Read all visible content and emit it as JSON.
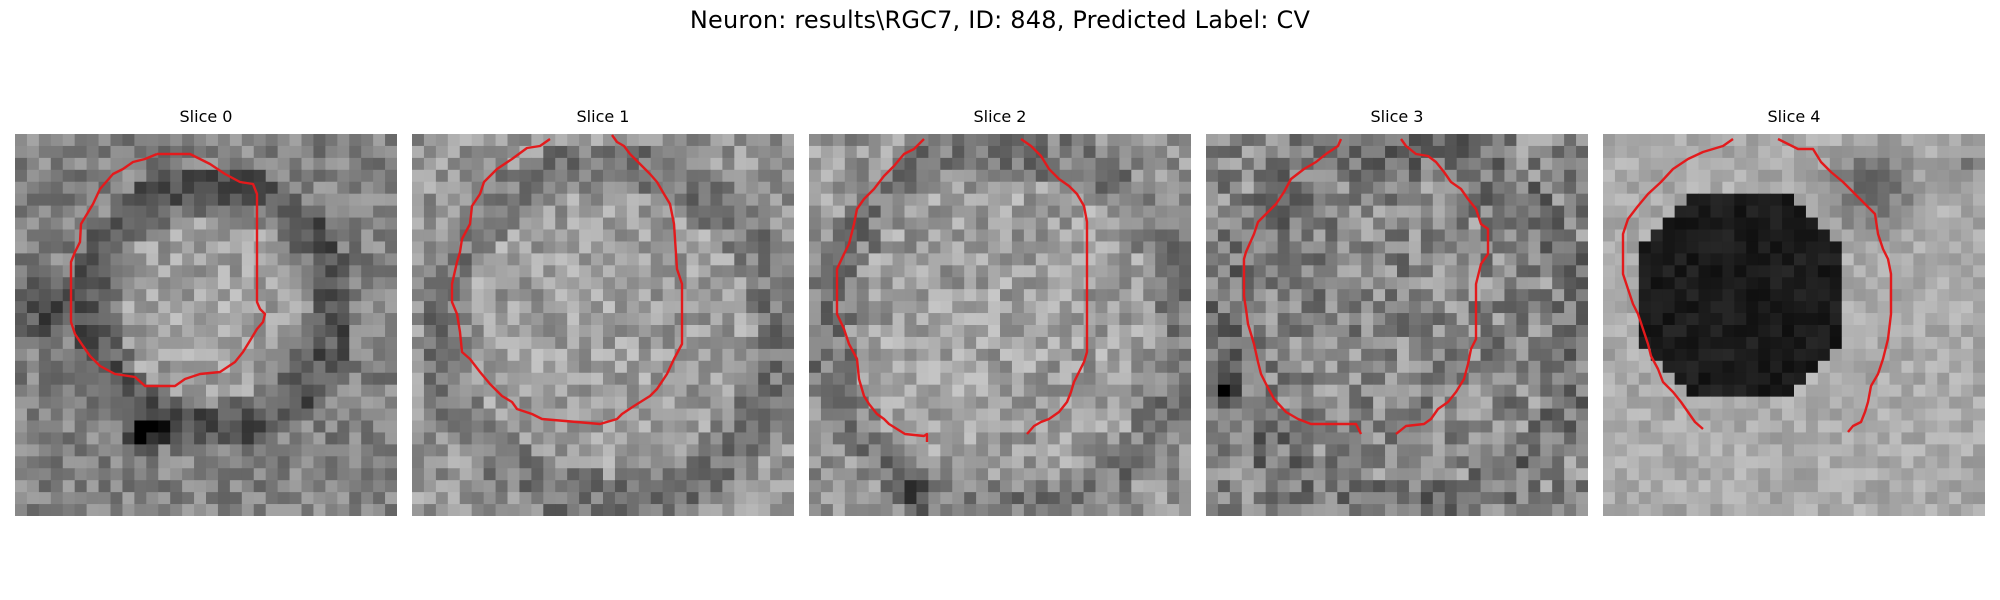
{
  "figure": {
    "suptitle": "Neuron: results\\RGC7, ID: 848, Predicted Label: CV",
    "contour_color": "#e31a1c",
    "colormap": "grayscale",
    "panels": [
      {
        "title": "Slice 0"
      },
      {
        "title": "Slice 1"
      },
      {
        "title": "Slice 2"
      },
      {
        "title": "Slice 3"
      },
      {
        "title": "Slice 4"
      }
    ]
  }
}
